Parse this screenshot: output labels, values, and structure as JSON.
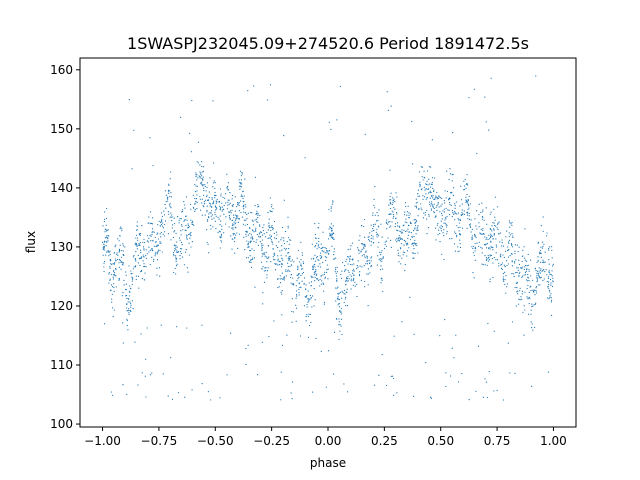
{
  "chart_data": {
    "type": "scatter",
    "title": "1SWASPJ232045.09+274520.6 Period 1891472.5s",
    "xlabel": "phase",
    "ylabel": "flux",
    "xlim": [
      -1.1,
      1.1
    ],
    "ylim": [
      99.5,
      162
    ],
    "xticks": [
      -1.0,
      -0.75,
      -0.5,
      -0.25,
      0.0,
      0.25,
      0.5,
      0.75,
      1.0
    ],
    "xtick_labels": [
      "−1.00",
      "−0.75",
      "−0.50",
      "−0.25",
      "0.00",
      "0.25",
      "0.50",
      "0.75",
      "1.00"
    ],
    "yticks": [
      100,
      110,
      120,
      130,
      140,
      150,
      160
    ],
    "ytick_labels": [
      "100",
      "110",
      "120",
      "130",
      "140",
      "150",
      "160"
    ],
    "grid": false,
    "marker_color": "#1f77b4",
    "folded_period_phase": 1.0,
    "series": [
      {
        "description_points": [
          {
            "x": -0.98,
            "y": 130.5
          },
          {
            "x": -0.96,
            "y": 122.0
          },
          {
            "x": -0.94,
            "y": 131.0
          },
          {
            "x": -0.92,
            "y": 128.0
          },
          {
            "x": -0.89,
            "y": 120.5
          },
          {
            "x": -0.86,
            "y": 128.0
          },
          {
            "x": -0.84,
            "y": 126.0
          },
          {
            "x": -0.8,
            "y": 132.0
          },
          {
            "x": -0.77,
            "y": 128.0
          },
          {
            "x": -0.74,
            "y": 134.0
          },
          {
            "x": -0.7,
            "y": 136.0
          },
          {
            "x": -0.66,
            "y": 130.0
          },
          {
            "x": -0.62,
            "y": 133.0
          },
          {
            "x": -0.58,
            "y": 138.0
          },
          {
            "x": -0.55,
            "y": 141.5
          },
          {
            "x": -0.52,
            "y": 134.0
          },
          {
            "x": -0.48,
            "y": 137.0
          },
          {
            "x": -0.43,
            "y": 135.0
          },
          {
            "x": -0.39,
            "y": 136.5
          },
          {
            "x": -0.35,
            "y": 132.0
          },
          {
            "x": -0.3,
            "y": 131.0
          },
          {
            "x": -0.25,
            "y": 130.5
          },
          {
            "x": -0.21,
            "y": 129.0
          },
          {
            "x": -0.17,
            "y": 127.0
          },
          {
            "x": -0.13,
            "y": 124.0
          },
          {
            "x": -0.1,
            "y": 122.5
          },
          {
            "x": -0.06,
            "y": 125.0
          },
          {
            "x": -0.03,
            "y": 129.0
          },
          {
            "x": 0.02,
            "y": 130.5
          },
          {
            "x": 0.05,
            "y": 122.0
          },
          {
            "x": 0.08,
            "y": 121.0
          },
          {
            "x": 0.11,
            "y": 128.0
          },
          {
            "x": 0.14,
            "y": 126.0
          },
          {
            "x": 0.2,
            "y": 132.0
          },
          {
            "x": 0.23,
            "y": 128.0
          },
          {
            "x": 0.26,
            "y": 134.0
          },
          {
            "x": 0.3,
            "y": 136.0
          },
          {
            "x": 0.34,
            "y": 130.0
          },
          {
            "x": 0.38,
            "y": 133.0
          },
          {
            "x": 0.42,
            "y": 138.0
          },
          {
            "x": 0.45,
            "y": 141.5
          },
          {
            "x": 0.48,
            "y": 134.0
          },
          {
            "x": 0.52,
            "y": 137.0
          },
          {
            "x": 0.57,
            "y": 135.0
          },
          {
            "x": 0.61,
            "y": 136.5
          },
          {
            "x": 0.65,
            "y": 132.0
          },
          {
            "x": 0.7,
            "y": 131.0
          },
          {
            "x": 0.75,
            "y": 130.5
          },
          {
            "x": 0.79,
            "y": 129.0
          },
          {
            "x": 0.83,
            "y": 127.0
          },
          {
            "x": 0.87,
            "y": 124.0
          },
          {
            "x": 0.9,
            "y": 122.5
          },
          {
            "x": 0.94,
            "y": 125.0
          },
          {
            "x": 0.97,
            "y": 129.0
          },
          {
            "x": 1.0,
            "y": 122.0
          }
        ]
      }
    ]
  }
}
